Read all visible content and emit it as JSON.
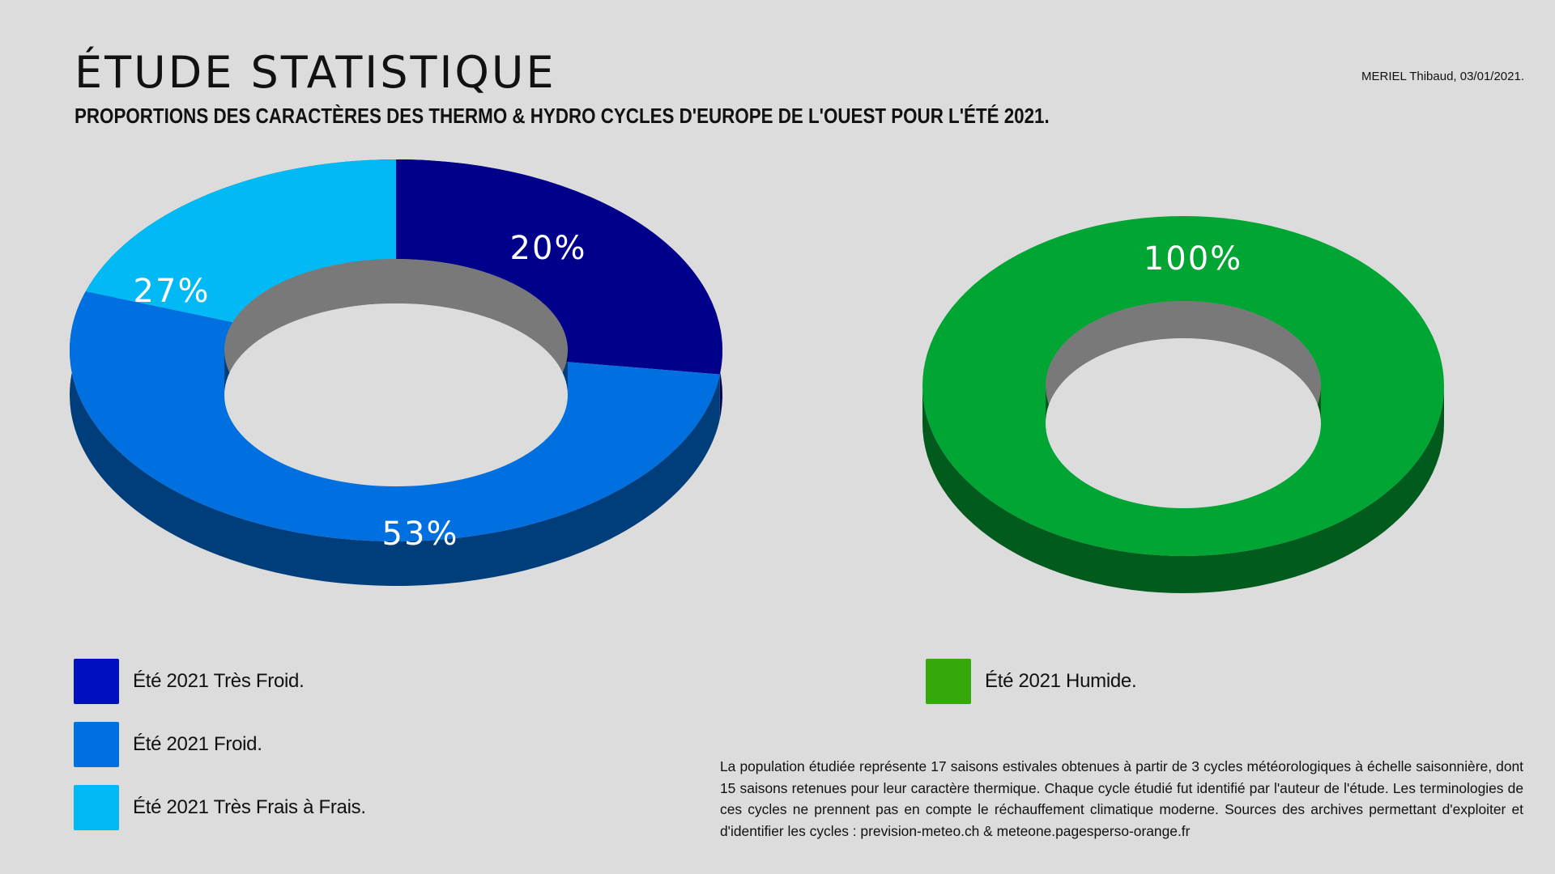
{
  "header": {
    "title": "ÉTUDE STATISTIQUE",
    "subtitle": "PROPORTIONS DES CARACTÈRES DES THERMO & HYDRO CYCLES D'EUROPE DE L'OUEST POUR L'ÉTÉ 2021.",
    "author": "MERIEL Thibaud, 03/01/2021."
  },
  "chart_data": [
    {
      "type": "pie",
      "variant": "donut-3d",
      "title": "",
      "categories": [
        "Été 2021 Très Froid.",
        "Été 2021 Froid.",
        "Été 2021 Très Frais à Frais."
      ],
      "values": [
        27,
        53,
        20
      ],
      "labels": [
        "27%",
        "53%",
        "20%"
      ],
      "colors": [
        "#00008b",
        "#0070e0",
        "#00b9f5"
      ],
      "legend_colors": [
        "#0010c0",
        "#0070e0",
        "#00b9f5"
      ],
      "legend_position": "bottom-left"
    },
    {
      "type": "pie",
      "variant": "donut-3d",
      "title": "",
      "categories": [
        "Été 2021 Humide."
      ],
      "values": [
        100
      ],
      "labels": [
        "100%"
      ],
      "colors": [
        "#00a533"
      ],
      "legend_colors": [
        "#35a80c"
      ],
      "legend_position": "bottom-left"
    }
  ],
  "note": "La population étudiée représente 17 saisons estivales obtenues à partir de 3 cycles météorologiques à échelle saisonnière, dont 15 saisons retenues pour leur caractère thermique. Chaque cycle étudié fut identifié par l'auteur de l'étude. Les terminologies de ces cycles ne prennent pas en compte le réchauffement climatique moderne. Sources des archives permettant d'exploiter et d'identifier les cycles : prevision-meteo.ch & meteone.pagesperso-orange.fr"
}
